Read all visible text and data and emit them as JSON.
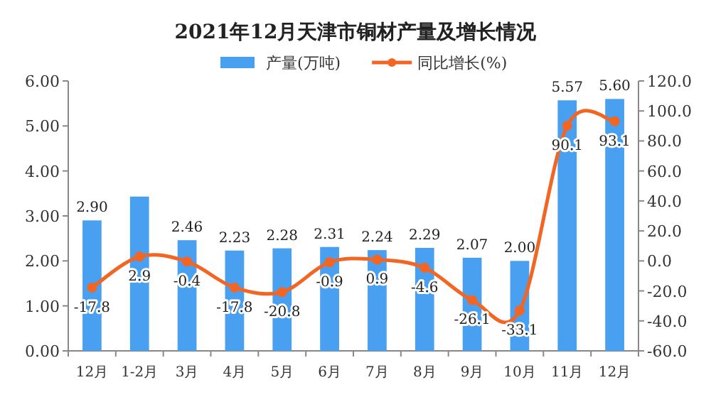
{
  "chart_data": {
    "type": "bar",
    "title": "2021年12月天津市铜材产量及增长情况",
    "categories": [
      "12月",
      "1-2月",
      "3月",
      "4月",
      "5月",
      "6月",
      "7月",
      "8月",
      "9月",
      "10月",
      "11月",
      "12月"
    ],
    "series": [
      {
        "name": "产量(万吨)",
        "color": "#4aa0f0",
        "values": [
          2.9,
          3.43,
          2.46,
          2.23,
          2.28,
          2.31,
          2.24,
          2.29,
          2.07,
          2.0,
          5.57,
          5.6
        ],
        "value_labels": [
          "2.90",
          null,
          "2.46",
          "2.23",
          "2.28",
          "2.31",
          "2.24",
          "2.29",
          "2.07",
          "2.00",
          "5.57",
          "5.60"
        ]
      },
      {
        "name": "同比增长(%)",
        "type": "line",
        "axis": "y2",
        "color": "#f26522",
        "marker": "circle",
        "values": [
          -17.8,
          2.9,
          -0.4,
          -17.8,
          -20.8,
          -0.9,
          0.9,
          -4.6,
          -26.1,
          -33.1,
          90.1,
          93.1
        ],
        "data_labels": true
      }
    ],
    "ylim": [
      0,
      6
    ],
    "yticks": [
      {
        "value": 0,
        "label": "0.00"
      },
      {
        "value": 1,
        "label": "1.00"
      },
      {
        "value": 2,
        "label": "2.00"
      },
      {
        "value": 3,
        "label": "3.00"
      },
      {
        "value": 4,
        "label": "4.00"
      },
      {
        "value": 5,
        "label": "5.00"
      },
      {
        "value": 6,
        "label": "6.00"
      }
    ],
    "y2lim": [
      -60,
      120
    ],
    "y2ticks": [
      {
        "value": -60,
        "label": "-60.0"
      },
      {
        "value": -40,
        "label": "-40.0"
      },
      {
        "value": -20,
        "label": "-20.0"
      },
      {
        "value": 0,
        "label": "0.0"
      },
      {
        "value": 20,
        "label": "20.0"
      },
      {
        "value": 40,
        "label": "40.0"
      },
      {
        "value": 60,
        "label": "60.0"
      },
      {
        "value": 80,
        "label": "80.0"
      },
      {
        "value": 100,
        "label": "100.0"
      },
      {
        "value": 120,
        "label": "120.0"
      }
    ],
    "legend": "top",
    "grid": false
  }
}
